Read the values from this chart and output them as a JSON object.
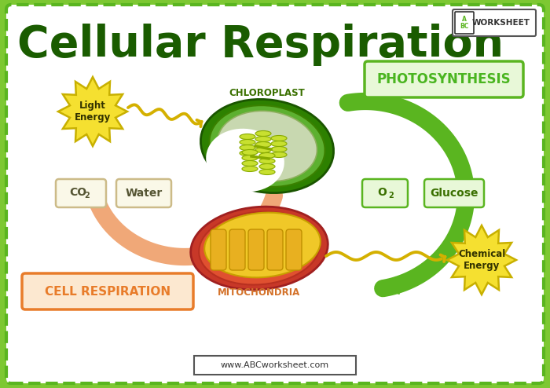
{
  "bg_color": "#7dc832",
  "inner_bg": "#ffffff",
  "title": "Cellular Respiration",
  "title_color": "#1a5c00",
  "title_fontsize": 40,
  "photosynthesis_label": "PHOTOSYNTHESIS",
  "photosynthesis_color": "#4ab520",
  "cell_respiration_label": "CELL RESPIRATION",
  "cell_respiration_color": "#e87c2a",
  "chloroplast_label": "CHLOROPLAST",
  "mitochondria_label": "MITOCHONDRIA",
  "mitochondria_color": "#d4722a",
  "water_label": "Water",
  "o2_label": "O",
  "o2_sub": "2",
  "glucose_label": "Glucose",
  "light_energy_label": "Light\nEnergy",
  "chemical_energy_label": "Chemical\nEnergy",
  "website": "www.ABCworksheet.com",
  "orange_arrow_color": "#f0a878",
  "green_arrow_color": "#5ab520",
  "yellow_star_color": "#f5e030",
  "yellow_star_border": "#c8b000",
  "wavy_color": "#d4b000",
  "dashed_border_color": "#5ab520",
  "green_box_fill": "#e8f8d8",
  "orange_box_fill": "#fce8d0",
  "label_co2_color": "#888855",
  "label_water_color": "#888855"
}
